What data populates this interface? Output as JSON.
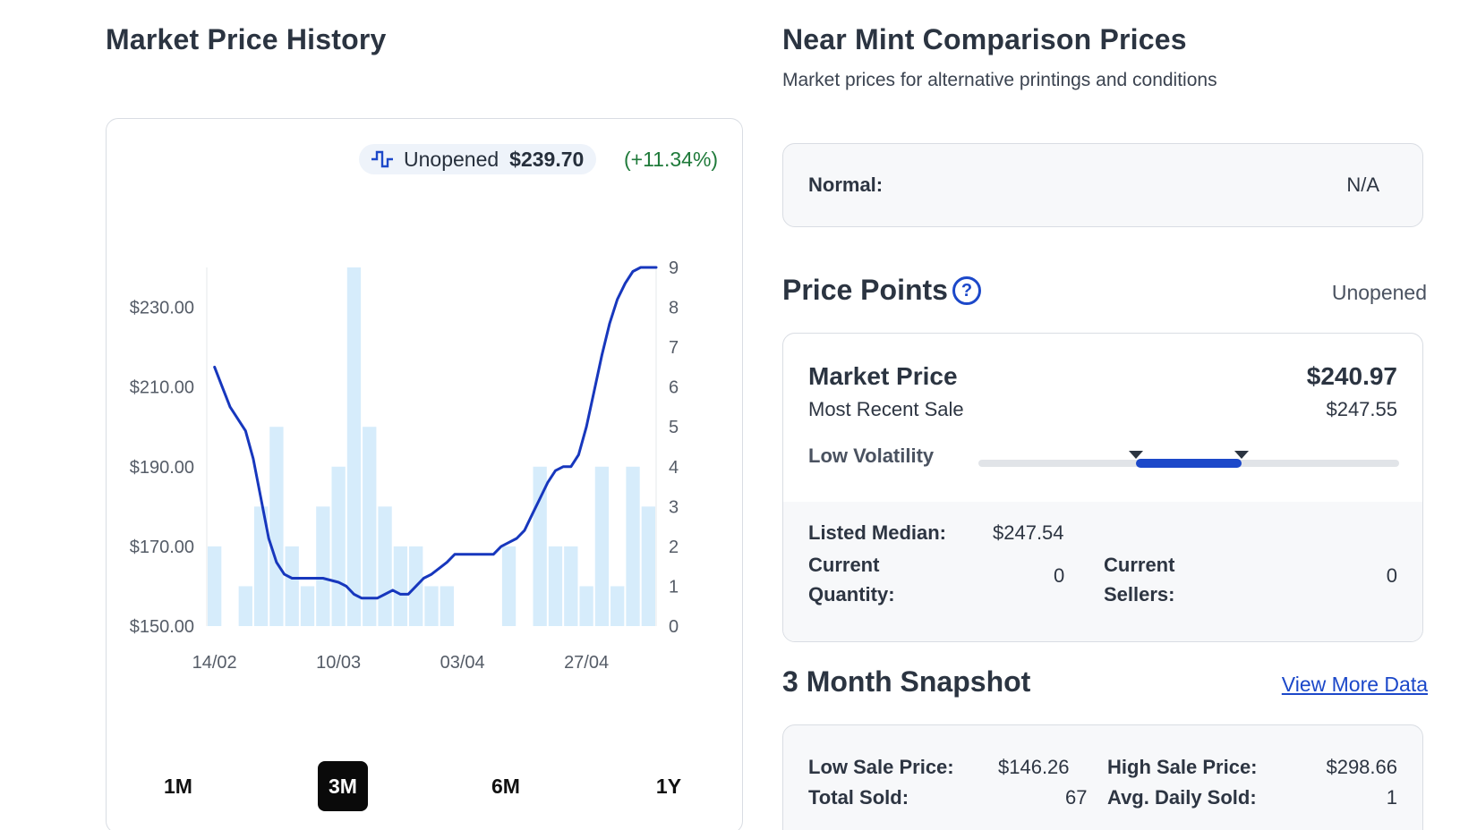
{
  "left": {
    "title": "Market Price History",
    "legend": {
      "label": "Unopened",
      "price": "$239.70",
      "change": "(+11.34%)"
    },
    "timeframes": [
      {
        "label": "1M",
        "active": false
      },
      {
        "label": "3M",
        "active": true
      },
      {
        "label": "6M",
        "active": false
      },
      {
        "label": "1Y",
        "active": false
      }
    ]
  },
  "chart_data": {
    "type": "line",
    "title": "",
    "xlabel": "",
    "ylabel": "",
    "y_left_ticks": [
      "$150.00",
      "$170.00",
      "$190.00",
      "$210.00",
      "$230.00"
    ],
    "ylim_price": [
      150,
      240
    ],
    "y_right_ticks": [
      "0",
      "1",
      "2",
      "3",
      "4",
      "5",
      "6",
      "7",
      "8",
      "9"
    ],
    "ylim_volume": [
      0,
      9
    ],
    "x_ticks": [
      "14/02",
      "10/03",
      "03/04",
      "27/04"
    ],
    "colors": {
      "line": "#1737bd",
      "bars": "#d6ecfb"
    },
    "series": [
      {
        "type": "bar",
        "axis": "right",
        "values": [
          2,
          0,
          1,
          3,
          5,
          2,
          1,
          3,
          4,
          9,
          5,
          3,
          2,
          2,
          1,
          1,
          0,
          0,
          0,
          2,
          0,
          4,
          2,
          2,
          1,
          4,
          1,
          4,
          3
        ]
      },
      {
        "type": "line",
        "axis": "left",
        "x": [
          0,
          0.5,
          1,
          2,
          2.5,
          3.5,
          4,
          4.5,
          5,
          5.5,
          6,
          7,
          8,
          8.5,
          9,
          9.5,
          10,
          10.5,
          11,
          11.5,
          12,
          12.5,
          13,
          13.5,
          14,
          15,
          15.5,
          16,
          17,
          17.5,
          18,
          18.5,
          19,
          19.5,
          20,
          20.5,
          21,
          21.5,
          22,
          22.5,
          23,
          23.5,
          24,
          24.5,
          25,
          25.5,
          26,
          26.5,
          27,
          27.5,
          28,
          28.5
        ],
        "values": [
          215,
          210,
          205,
          199,
          192,
          172,
          166,
          163,
          162,
          162,
          162,
          162,
          161,
          160,
          158,
          157,
          157,
          157,
          158,
          159,
          158,
          158,
          160,
          162,
          163,
          166,
          168,
          168,
          168,
          168,
          168,
          170,
          171,
          172,
          174,
          178,
          182,
          186,
          189,
          190,
          190,
          193,
          200,
          209,
          218,
          226,
          232,
          236,
          239,
          240,
          240,
          240
        ]
      }
    ],
    "legend_position": "top-right",
    "grid": false
  },
  "right": {
    "title": "Near Mint Comparison Prices",
    "subtitle": "Market prices for alternative printings and conditions",
    "normal_label": "Normal:",
    "normal_value": "N/A",
    "price_points_title": "Price Points",
    "condition": "Unopened",
    "market_price_label": "Market Price",
    "market_price_value": "$240.97",
    "recent_sale_label": "Most Recent Sale",
    "recent_sale_value": "$247.55",
    "volatility_label": "Low Volatility",
    "volatility_range": [
      0.375,
      0.625
    ],
    "listed_median_label": "Listed Median:",
    "listed_median_value": "$247.54",
    "current_quantity_label": "Current Quantity:",
    "current_quantity_value": "0",
    "current_sellers_label": "Current Sellers:",
    "current_sellers_value": "0",
    "snapshot_title": "3 Month Snapshot",
    "view_more": "View More Data",
    "low_sale_label": "Low Sale Price:",
    "low_sale_value": "$146.26",
    "high_sale_label": "High Sale Price:",
    "high_sale_value": "$298.66",
    "total_sold_label": "Total Sold:",
    "total_sold_value": "67",
    "avg_daily_label": "Avg. Daily Sold:",
    "avg_daily_value": "1"
  }
}
